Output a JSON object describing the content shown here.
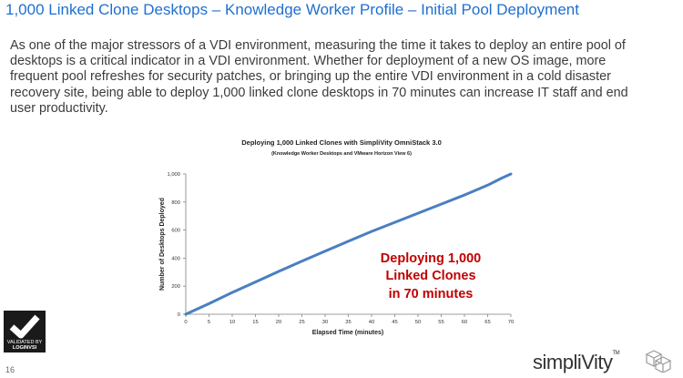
{
  "slide": {
    "title": "1,000 Linked Clone Desktops – Knowledge Worker Profile – Initial Pool Deployment",
    "intro_lines": [
      "As one of the major stressors of a VDI environment, measuring the time it takes to deploy an entire pool of",
      "desktops is a critical indicator in a VDI environment.  Whether for deployment of a new OS image, more",
      "frequent pool refreshes for security patches, or bringing up the entire VDI environment in a cold disaster",
      "recovery site, being able to deploy 1,000 linked clone desktops in 70 minutes can increase IT staff and end",
      "user productivity."
    ],
    "page_number": "16",
    "badge_lines": [
      "VALIDATED BY",
      "LOGINVSI"
    ],
    "brand": "simpliVity",
    "brand_tm": "TM"
  },
  "chart_data": {
    "type": "line",
    "title": "Deploying 1,000 Linked Clones with SimpliVity OmniStack 3.0",
    "subtitle": "(Knowledge Worker Desktops and VMware Horizon View 6)",
    "xlabel": "Elapsed Time (minutes)",
    "ylabel": "Number of Desktops Deployed",
    "xlim": [
      0,
      70
    ],
    "ylim": [
      0,
      1000
    ],
    "xticks": [
      0,
      5,
      10,
      15,
      20,
      25,
      30,
      35,
      40,
      45,
      50,
      55,
      60,
      65,
      70
    ],
    "yticks": [
      0,
      200,
      400,
      600,
      800,
      1000
    ],
    "ytick_labels": [
      "0",
      "200",
      "400",
      "600",
      "800",
      "1,000"
    ],
    "grid": false,
    "legend": "none",
    "annotation": [
      "Deploying 1,000",
      "Linked Clones",
      "in 70 minutes"
    ],
    "colors": {
      "line": "#4a7fc1",
      "annotation": "#c00000",
      "axis": "#7f7f7f"
    },
    "series": [
      {
        "x": [
          0,
          5,
          10,
          15,
          20,
          25,
          30,
          35,
          40,
          45,
          50,
          55,
          60,
          65,
          68,
          70
        ],
        "values": [
          0,
          75,
          155,
          230,
          305,
          378,
          450,
          520,
          590,
          655,
          720,
          785,
          850,
          920,
          970,
          1000
        ]
      }
    ]
  }
}
